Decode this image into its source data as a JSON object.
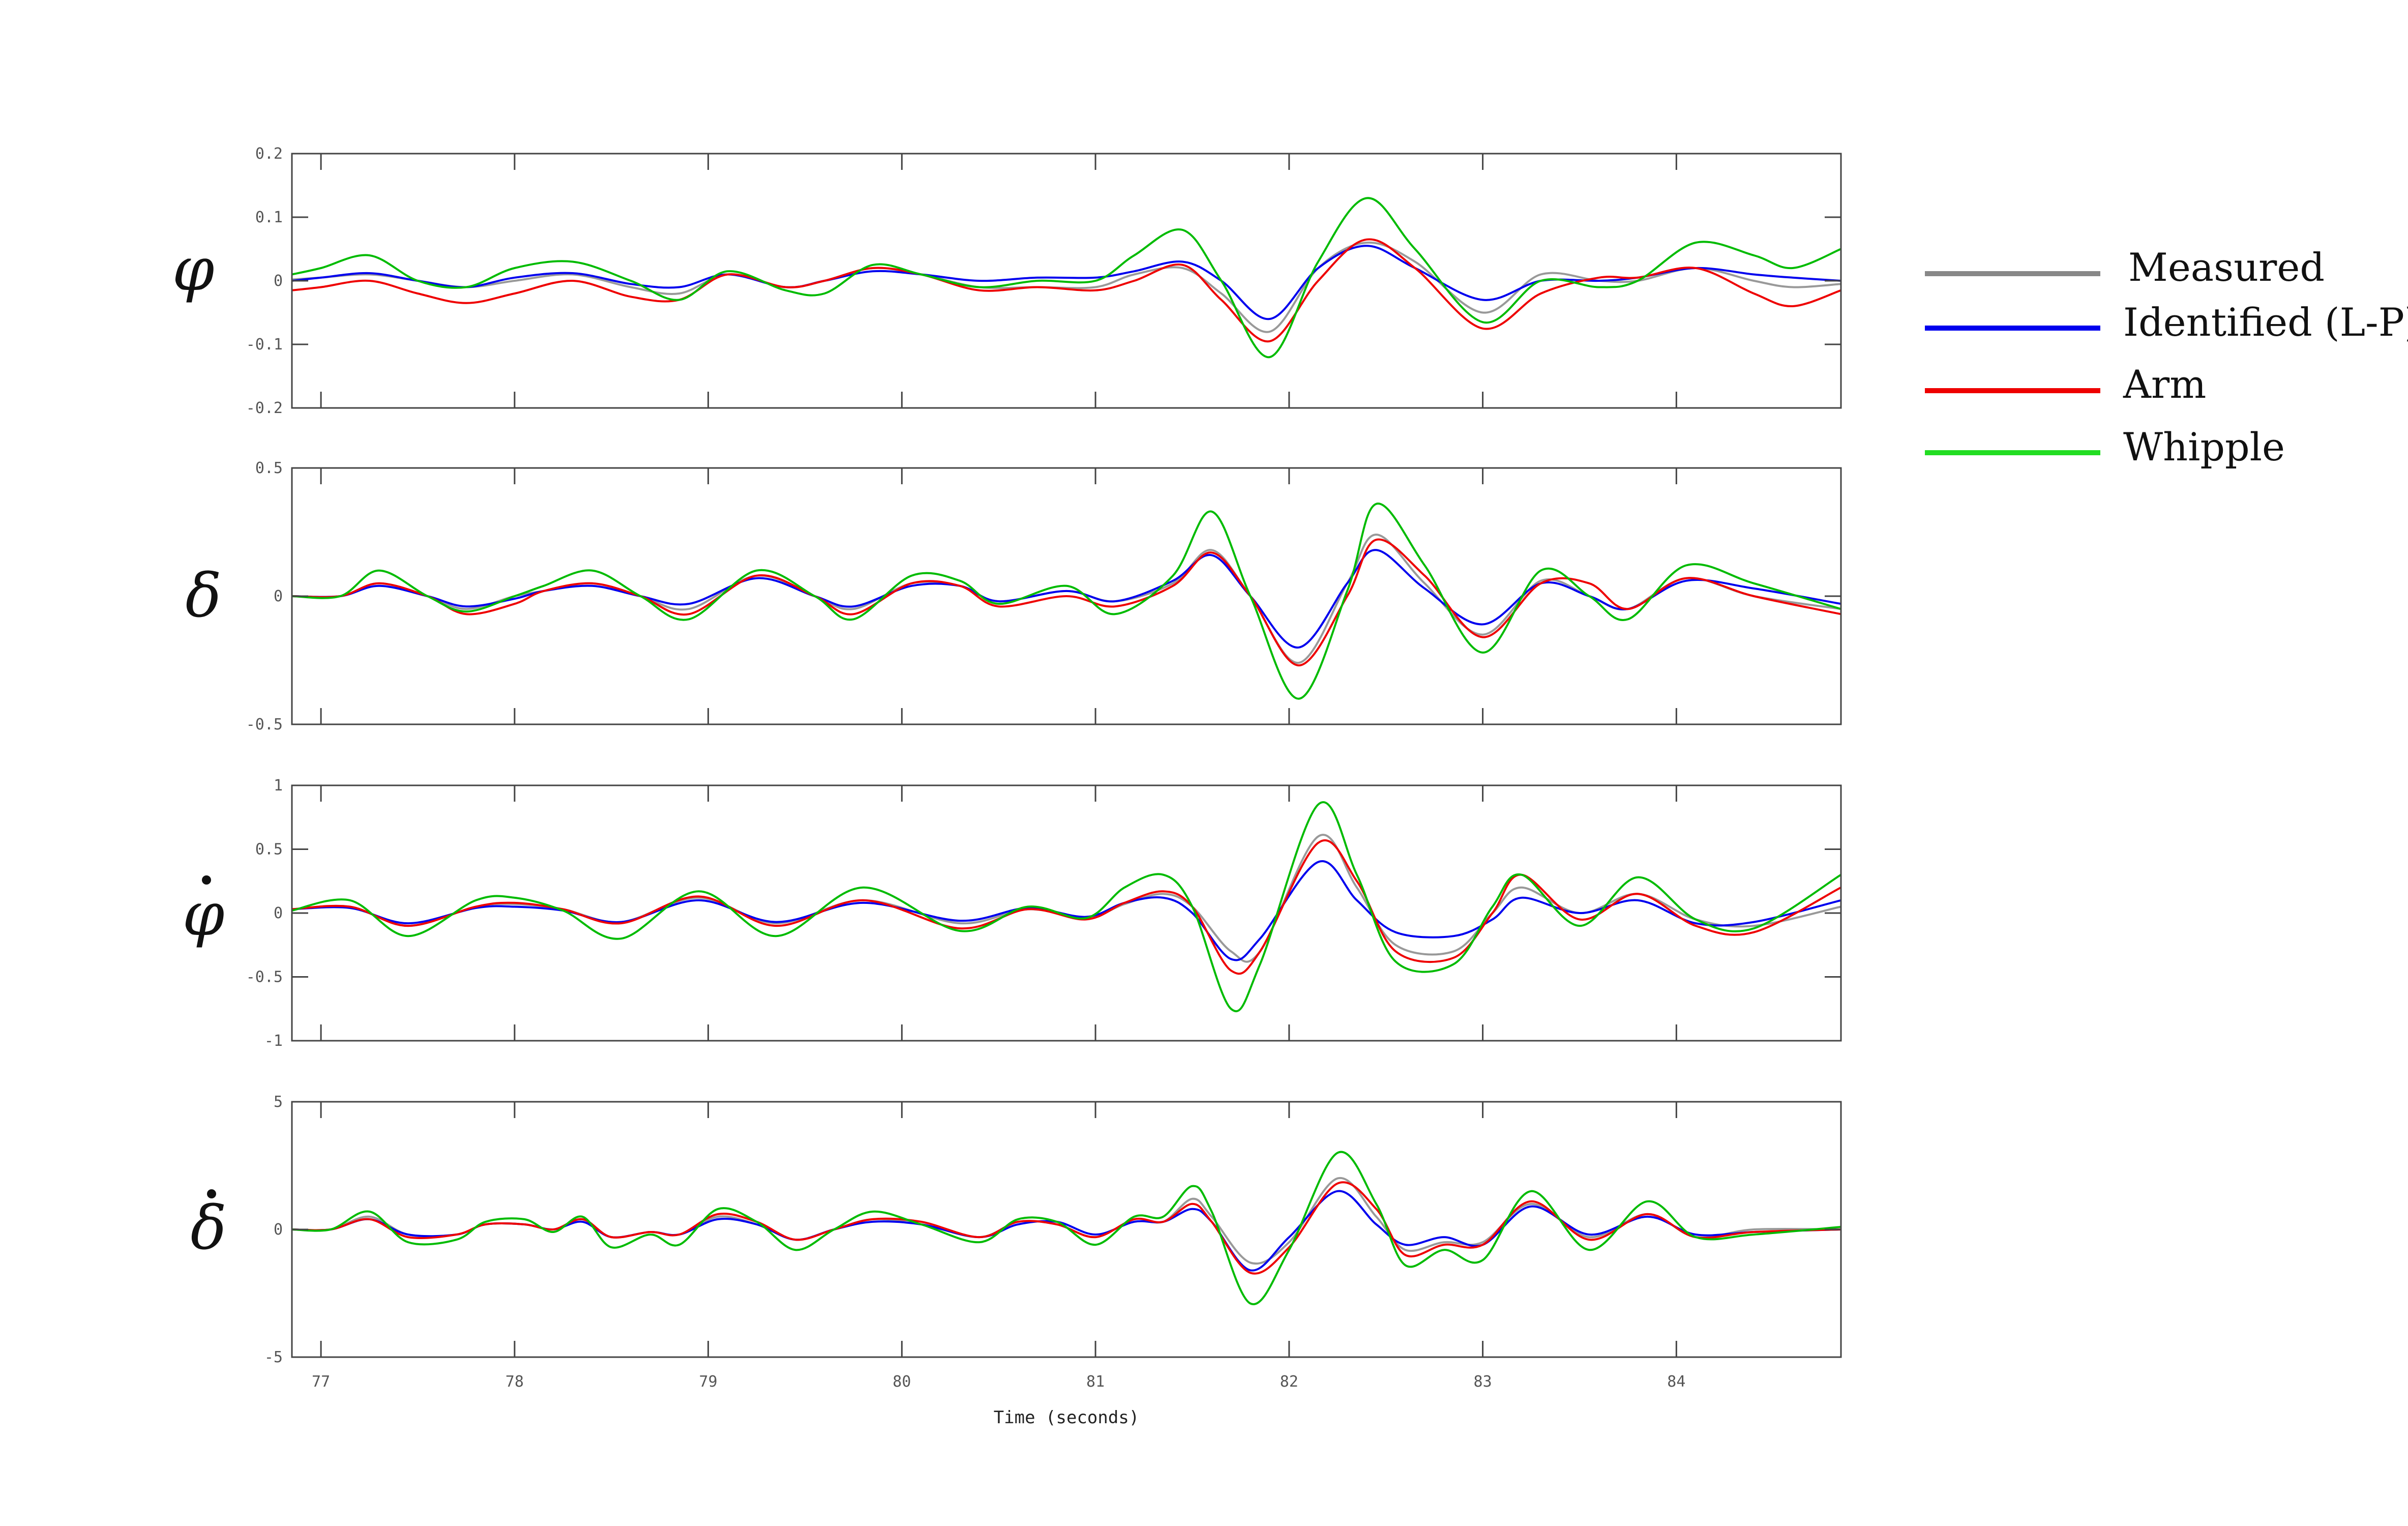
{
  "chart_data": [
    {
      "type": "line",
      "ylabel": "φ",
      "ylabel_dot": false,
      "xlabel": "",
      "xlim": [
        76.85,
        84.85
      ],
      "ylim": [
        -0.2,
        0.2
      ],
      "yticks": [
        -0.2,
        -0.1,
        0,
        0.1,
        0.2
      ],
      "ytick_labels": [
        "-0.2",
        "-0.1",
        "0",
        "0.1",
        "0.2"
      ],
      "xticks": [
        77,
        78,
        79,
        80,
        81,
        82,
        83,
        84
      ],
      "xtick_labels": [],
      "grid": false,
      "x": [
        76.85,
        77.0,
        77.25,
        77.5,
        77.75,
        78.0,
        78.3,
        78.6,
        78.85,
        79.1,
        79.4,
        79.6,
        79.85,
        80.1,
        80.4,
        80.7,
        81.0,
        81.2,
        81.45,
        81.65,
        81.9,
        82.15,
        82.4,
        82.65,
        83.0,
        83.3,
        83.6,
        83.8,
        84.1,
        84.4,
        84.6,
        84.85
      ],
      "series": [
        {
          "name": "Measured",
          "color": "#999999",
          "values": [
            0.002,
            0.005,
            0.01,
            0.0,
            -0.01,
            0.0,
            0.01,
            -0.01,
            -0.02,
            0.01,
            -0.01,
            0.0,
            0.02,
            0.01,
            -0.01,
            -0.01,
            -0.01,
            0.01,
            0.02,
            -0.02,
            -0.08,
            0.02,
            0.06,
            0.03,
            -0.05,
            0.01,
            0.0,
            0.0,
            0.02,
            0.0,
            -0.01,
            -0.005
          ]
        },
        {
          "name": "Identified (L-P)",
          "color": "#0000ee",
          "values": [
            0.0,
            0.005,
            0.012,
            0.0,
            -0.01,
            0.005,
            0.012,
            -0.005,
            -0.01,
            0.01,
            -0.01,
            0.0,
            0.015,
            0.01,
            0.0,
            0.005,
            0.005,
            0.015,
            0.03,
            0.0,
            -0.06,
            0.02,
            0.055,
            0.02,
            -0.03,
            0.0,
            0.0,
            0.005,
            0.02,
            0.01,
            0.005,
            0.0
          ]
        },
        {
          "name": "Arm",
          "color": "#ee0000",
          "values": [
            -0.015,
            -0.01,
            0.0,
            -0.02,
            -0.035,
            -0.02,
            0.0,
            -0.025,
            -0.03,
            0.01,
            -0.01,
            0.0,
            0.02,
            0.01,
            -0.015,
            -0.01,
            -0.015,
            0.0,
            0.025,
            -0.03,
            -0.095,
            0.0,
            0.065,
            0.02,
            -0.075,
            -0.02,
            0.005,
            0.005,
            0.02,
            -0.02,
            -0.04,
            -0.015
          ]
        },
        {
          "name": "Whipple",
          "color": "#00bb00",
          "values": [
            0.01,
            0.02,
            0.04,
            0.0,
            -0.01,
            0.02,
            0.03,
            0.0,
            -0.03,
            0.015,
            -0.015,
            -0.02,
            0.025,
            0.01,
            -0.01,
            0.0,
            0.0,
            0.04,
            0.08,
            0.0,
            -0.12,
            0.03,
            0.13,
            0.05,
            -0.065,
            0.0,
            -0.01,
            0.0,
            0.06,
            0.04,
            0.02,
            0.05
          ]
        }
      ]
    },
    {
      "type": "line",
      "ylabel": "δ",
      "ylabel_dot": false,
      "xlabel": "",
      "xlim": [
        76.85,
        84.85
      ],
      "ylim": [
        -0.5,
        0.5
      ],
      "yticks": [
        -0.5,
        0,
        0.5
      ],
      "ytick_labels": [
        "-0.5",
        "0",
        "0.5"
      ],
      "xticks": [
        77,
        78,
        79,
        80,
        81,
        82,
        83,
        84
      ],
      "xtick_labels": [],
      "grid": false,
      "x": [
        76.85,
        77.1,
        77.3,
        77.55,
        77.75,
        78.0,
        78.15,
        78.4,
        78.65,
        78.9,
        79.25,
        79.55,
        79.75,
        80.05,
        80.3,
        80.5,
        80.85,
        81.1,
        81.4,
        81.6,
        81.8,
        82.05,
        82.3,
        82.45,
        82.7,
        83.0,
        83.3,
        83.55,
        83.75,
        84.05,
        84.4,
        84.85
      ],
      "series": [
        {
          "name": "Measured",
          "color": "#999999",
          "values": [
            0.0,
            0.0,
            0.05,
            0.0,
            -0.05,
            0.0,
            0.02,
            0.05,
            0.0,
            -0.05,
            0.08,
            0.0,
            -0.05,
            0.05,
            0.04,
            -0.02,
            0.02,
            -0.02,
            0.05,
            0.18,
            0.0,
            -0.26,
            0.05,
            0.24,
            0.05,
            -0.15,
            0.06,
            0.0,
            -0.05,
            0.07,
            0.0,
            -0.05
          ]
        },
        {
          "name": "Identified (L-P)",
          "color": "#0000ee",
          "values": [
            0.0,
            0.0,
            0.04,
            0.0,
            -0.04,
            -0.01,
            0.02,
            0.04,
            0.0,
            -0.03,
            0.07,
            0.0,
            -0.04,
            0.04,
            0.04,
            -0.02,
            0.02,
            -0.02,
            0.06,
            0.16,
            0.0,
            -0.2,
            0.05,
            0.18,
            0.03,
            -0.11,
            0.05,
            0.0,
            -0.05,
            0.06,
            0.03,
            -0.03
          ]
        },
        {
          "name": "Arm",
          "color": "#ee0000",
          "values": [
            0.0,
            0.0,
            0.05,
            0.0,
            -0.07,
            -0.03,
            0.02,
            0.05,
            0.0,
            -0.07,
            0.08,
            0.0,
            -0.07,
            0.05,
            0.04,
            -0.04,
            0.0,
            -0.04,
            0.04,
            0.17,
            0.0,
            -0.27,
            0.0,
            0.22,
            0.08,
            -0.16,
            0.05,
            0.05,
            -0.05,
            0.07,
            0.0,
            -0.07
          ]
        },
        {
          "name": "Whipple",
          "color": "#00bb00",
          "values": [
            0.0,
            0.0,
            0.1,
            0.0,
            -0.06,
            0.0,
            0.04,
            0.1,
            0.0,
            -0.09,
            0.1,
            0.0,
            -0.09,
            0.08,
            0.06,
            -0.03,
            0.04,
            -0.07,
            0.08,
            0.33,
            0.0,
            -0.4,
            0.02,
            0.36,
            0.12,
            -0.22,
            0.1,
            0.0,
            -0.09,
            0.12,
            0.05,
            -0.05
          ]
        }
      ]
    },
    {
      "type": "line",
      "ylabel": "φ",
      "ylabel_dot": true,
      "xlabel": "",
      "xlim": [
        76.85,
        84.85
      ],
      "ylim": [
        -1,
        1
      ],
      "yticks": [
        -1,
        -0.5,
        0,
        0.5,
        1
      ],
      "ytick_labels": [
        "-1",
        "-0.5",
        "0",
        "0.5",
        "1"
      ],
      "xticks": [
        77,
        78,
        79,
        80,
        81,
        82,
        83,
        84
      ],
      "xtick_labels": [],
      "grid": false,
      "x": [
        76.85,
        77.15,
        77.45,
        77.8,
        78.0,
        78.25,
        78.55,
        78.95,
        79.35,
        79.8,
        80.3,
        80.65,
        80.95,
        81.15,
        81.35,
        81.5,
        81.7,
        81.85,
        82.15,
        82.35,
        82.55,
        82.85,
        83.05,
        83.2,
        83.5,
        83.8,
        84.1,
        84.4,
        84.85
      ],
      "series": [
        {
          "name": "Measured",
          "color": "#999999",
          "values": [
            0.03,
            0.05,
            -0.1,
            0.05,
            0.07,
            0.03,
            -0.07,
            0.12,
            -0.08,
            0.1,
            -0.08,
            0.03,
            -0.04,
            0.07,
            0.15,
            0.05,
            -0.3,
            -0.3,
            0.6,
            0.2,
            -0.25,
            -0.3,
            0.0,
            0.2,
            0.0,
            0.15,
            -0.05,
            -0.1,
            0.05
          ]
        },
        {
          "name": "Identified (L-P)",
          "color": "#0000ee",
          "values": [
            0.03,
            0.04,
            -0.08,
            0.04,
            0.05,
            0.02,
            -0.07,
            0.1,
            -0.07,
            0.08,
            -0.06,
            0.04,
            -0.03,
            0.08,
            0.12,
            0.0,
            -0.36,
            -0.2,
            0.4,
            0.1,
            -0.15,
            -0.18,
            -0.05,
            0.12,
            0.0,
            0.1,
            -0.08,
            -0.07,
            0.1
          ]
        },
        {
          "name": "Arm",
          "color": "#ee0000",
          "values": [
            0.03,
            0.05,
            -0.1,
            0.05,
            0.08,
            0.03,
            -0.08,
            0.13,
            -0.1,
            0.1,
            -0.12,
            0.03,
            -0.05,
            0.08,
            0.17,
            0.05,
            -0.45,
            -0.3,
            0.55,
            0.25,
            -0.3,
            -0.35,
            0.0,
            0.3,
            -0.05,
            0.15,
            -0.1,
            -0.15,
            0.2
          ]
        },
        {
          "name": "Whipple",
          "color": "#00bb00",
          "values": [
            0.02,
            0.1,
            -0.18,
            0.1,
            0.12,
            0.02,
            -0.2,
            0.17,
            -0.18,
            0.2,
            -0.14,
            0.05,
            -0.04,
            0.2,
            0.3,
            0.05,
            -0.75,
            -0.4,
            0.85,
            0.3,
            -0.38,
            -0.4,
            0.05,
            0.3,
            -0.1,
            0.28,
            -0.05,
            -0.12,
            0.3
          ]
        }
      ]
    },
    {
      "type": "line",
      "ylabel": "δ",
      "ylabel_dot": true,
      "xlabel": "Time (seconds)",
      "xlim": [
        76.85,
        84.85
      ],
      "ylim": [
        -5,
        5
      ],
      "yticks": [
        -5,
        0,
        5
      ],
      "ytick_labels": [
        "-5",
        "0",
        "5"
      ],
      "xticks": [
        77,
        78,
        79,
        80,
        81,
        82,
        83,
        84
      ],
      "xtick_labels": [
        "77",
        "78",
        "79",
        "80",
        "81",
        "82",
        "83",
        "84"
      ],
      "grid": false,
      "x": [
        76.85,
        77.05,
        77.25,
        77.45,
        77.7,
        77.85,
        78.05,
        78.2,
        78.35,
        78.5,
        78.7,
        78.85,
        79.05,
        79.25,
        79.45,
        79.65,
        79.85,
        80.1,
        80.4,
        80.6,
        80.8,
        81.0,
        81.2,
        81.35,
        81.5,
        81.6,
        81.8,
        82.0,
        82.25,
        82.45,
        82.6,
        82.8,
        83.0,
        83.25,
        83.55,
        83.85,
        84.1,
        84.4,
        84.85
      ],
      "series": [
        {
          "name": "Measured",
          "color": "#999999",
          "values": [
            0.0,
            0.0,
            0.5,
            -0.2,
            -0.2,
            0.2,
            0.2,
            0.0,
            0.4,
            -0.3,
            -0.1,
            -0.2,
            0.5,
            0.2,
            -0.4,
            0.0,
            0.4,
            0.2,
            -0.3,
            0.3,
            0.2,
            -0.3,
            0.4,
            0.3,
            1.2,
            0.5,
            -1.3,
            -0.5,
            2.0,
            0.5,
            -0.8,
            -0.5,
            -0.5,
            1.0,
            -0.3,
            0.6,
            -0.3,
            0.0,
            0.0
          ]
        },
        {
          "name": "Identified (L-P)",
          "color": "#0000ee",
          "values": [
            0.0,
            0.0,
            0.4,
            -0.2,
            -0.2,
            0.2,
            0.2,
            0.0,
            0.3,
            -0.3,
            -0.1,
            -0.2,
            0.4,
            0.2,
            -0.4,
            0.0,
            0.3,
            0.2,
            -0.3,
            0.2,
            0.3,
            -0.2,
            0.3,
            0.3,
            0.8,
            0.3,
            -1.6,
            -0.3,
            1.5,
            0.2,
            -0.6,
            -0.3,
            -0.6,
            0.9,
            -0.2,
            0.5,
            -0.2,
            -0.1,
            0.0
          ]
        },
        {
          "name": "Arm",
          "color": "#ee0000",
          "values": [
            0.0,
            0.0,
            0.4,
            -0.3,
            -0.2,
            0.2,
            0.2,
            0.0,
            0.4,
            -0.3,
            -0.1,
            -0.2,
            0.6,
            0.3,
            -0.4,
            0.0,
            0.4,
            0.3,
            -0.3,
            0.3,
            0.2,
            -0.3,
            0.4,
            0.3,
            1.0,
            0.3,
            -1.7,
            -0.7,
            1.8,
            0.8,
            -1.0,
            -0.6,
            -0.6,
            1.1,
            -0.4,
            0.6,
            -0.3,
            -0.1,
            0.0
          ]
        },
        {
          "name": "Whipple",
          "color": "#00bb00",
          "values": [
            0.0,
            0.0,
            0.7,
            -0.5,
            -0.4,
            0.3,
            0.4,
            -0.1,
            0.5,
            -0.7,
            -0.2,
            -0.6,
            0.8,
            0.3,
            -0.8,
            0.0,
            0.7,
            0.2,
            -0.5,
            0.4,
            0.3,
            -0.6,
            0.5,
            0.5,
            1.7,
            0.7,
            -2.9,
            -0.8,
            3.0,
            1.0,
            -1.4,
            -0.8,
            -1.2,
            1.5,
            -0.8,
            1.1,
            -0.3,
            -0.2,
            0.1
          ]
        }
      ]
    }
  ],
  "legend": {
    "position": "right",
    "entries": [
      {
        "label": "Measured",
        "color": "#888888"
      },
      {
        "label": "Identified (L-P)",
        "color": "#0000ee"
      },
      {
        "label": "Arm",
        "color": "#ee0000"
      },
      {
        "label": "Whipple",
        "color": "#22dd22"
      }
    ]
  }
}
